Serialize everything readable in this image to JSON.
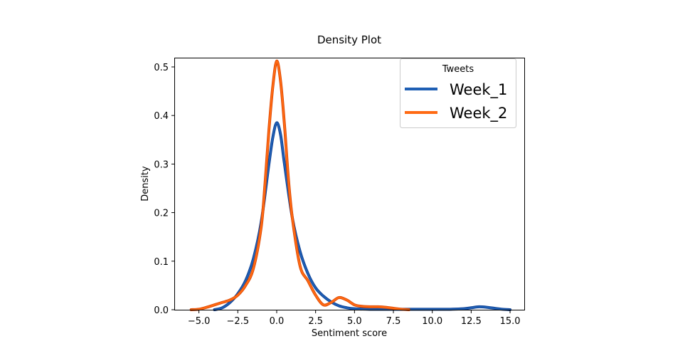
{
  "chart_data": {
    "type": "line",
    "title": "Density Plot",
    "xlabel": "Sentiment score",
    "ylabel": "Density",
    "xlim": [
      -6.2,
      16.0
    ],
    "ylim": [
      0.0,
      0.53
    ],
    "xticks": [
      -5.0,
      -2.5,
      0.0,
      2.5,
      5.0,
      7.5,
      10.0,
      12.5,
      15.0
    ],
    "xtick_labels": [
      "−5.0",
      "−2.5",
      "0.0",
      "2.5",
      "5.0",
      "7.5",
      "10.0",
      "12.5",
      "15.0"
    ],
    "yticks": [
      0.0,
      0.1,
      0.2,
      0.3,
      0.4,
      0.5
    ],
    "ytick_labels": [
      "0.0",
      "0.1",
      "0.2",
      "0.3",
      "0.4",
      "0.5"
    ],
    "grid": false,
    "legend": {
      "title": "Tweets",
      "placement": "top-right",
      "entries": [
        "Week_1",
        "Week_2"
      ]
    },
    "series": [
      {
        "name": "Week_1",
        "color": "#1f5fb4",
        "x": [
          -4.0,
          -3.5,
          -3.0,
          -2.5,
          -2.0,
          -1.5,
          -1.0,
          -0.5,
          -0.25,
          0.0,
          0.25,
          0.5,
          1.0,
          1.5,
          2.0,
          2.5,
          3.0,
          3.5,
          4.0,
          4.5,
          5.0,
          6.0,
          7.0,
          8.0,
          9.0,
          10.0,
          11.0,
          12.0,
          12.5,
          13.0,
          13.5,
          14.0,
          14.5,
          15.0
        ],
        "y": [
          0.0,
          0.004,
          0.015,
          0.033,
          0.06,
          0.105,
          0.18,
          0.3,
          0.355,
          0.385,
          0.36,
          0.3,
          0.19,
          0.12,
          0.075,
          0.045,
          0.028,
          0.016,
          0.008,
          0.004,
          0.002,
          0.001,
          0.001,
          0.001,
          0.001,
          0.001,
          0.001,
          0.002,
          0.004,
          0.006,
          0.005,
          0.003,
          0.001,
          0.0
        ]
      },
      {
        "name": "Week_2",
        "color": "#ff6a13",
        "x": [
          -5.5,
          -5.0,
          -4.5,
          -4.0,
          -3.5,
          -3.0,
          -2.5,
          -2.0,
          -1.5,
          -1.0,
          -0.75,
          -0.5,
          -0.25,
          0.0,
          0.25,
          0.5,
          0.75,
          1.0,
          1.5,
          2.0,
          2.5,
          3.0,
          3.5,
          4.0,
          4.5,
          5.0,
          5.5,
          6.0,
          6.5,
          7.0,
          7.5,
          8.0,
          8.5
        ],
        "y": [
          0.0,
          0.001,
          0.005,
          0.01,
          0.015,
          0.02,
          0.03,
          0.05,
          0.085,
          0.17,
          0.26,
          0.37,
          0.46,
          0.512,
          0.47,
          0.38,
          0.27,
          0.19,
          0.09,
          0.06,
          0.03,
          0.01,
          0.015,
          0.025,
          0.02,
          0.01,
          0.007,
          0.006,
          0.006,
          0.005,
          0.003,
          0.001,
          0.0
        ]
      }
    ]
  }
}
